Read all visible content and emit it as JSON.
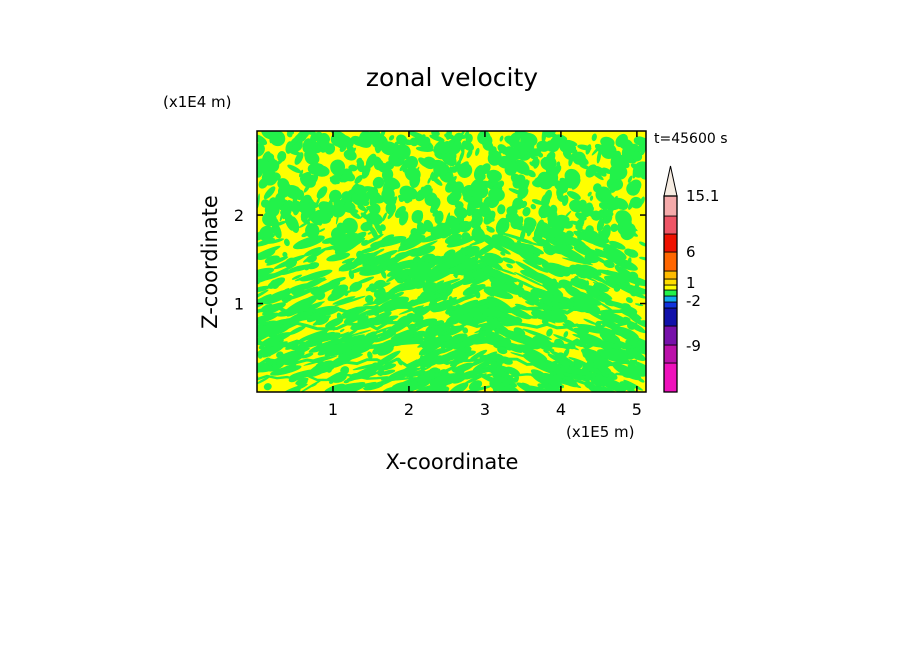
{
  "chart_data": {
    "type": "heatmap",
    "title": "zonal velocity",
    "xlabel": "X-coordinate",
    "ylabel": "Z-coordinate",
    "x_unit": "(x1E5 m)",
    "y_unit": "(x1E4 m)",
    "time_label": "t=45600 s",
    "xlim": [
      0,
      5.12
    ],
    "ylim": [
      0,
      2.95
    ],
    "x_ticks": [
      "1",
      "2",
      "3",
      "4",
      "5"
    ],
    "y_ticks": [
      "1",
      "2"
    ],
    "x_tick_values": [
      1,
      2,
      3,
      4,
      5
    ],
    "y_tick_values": [
      1,
      2
    ],
    "field_levels": [
      "green",
      "yellow"
    ],
    "field_colors": {
      "green": "#22f24a",
      "yellow": "#ffff00"
    },
    "colorbar": {
      "colors_bottom_to_top": [
        "#ee11bb",
        "#bb11aa",
        "#7711aa",
        "#1111aa",
        "#1133dd",
        "#11aaee",
        "#22f24a",
        "#ffff00",
        "#ffdd00",
        "#ffbb00",
        "#ff6600",
        "#ee1100",
        "#ee5566",
        "#f5aaaa"
      ],
      "tip_color": "#f6ece2",
      "labels": [
        "15.1",
        "6",
        "1",
        "-2",
        "-9"
      ],
      "label_values": [
        15.1,
        6,
        1,
        -2,
        -9
      ]
    }
  }
}
